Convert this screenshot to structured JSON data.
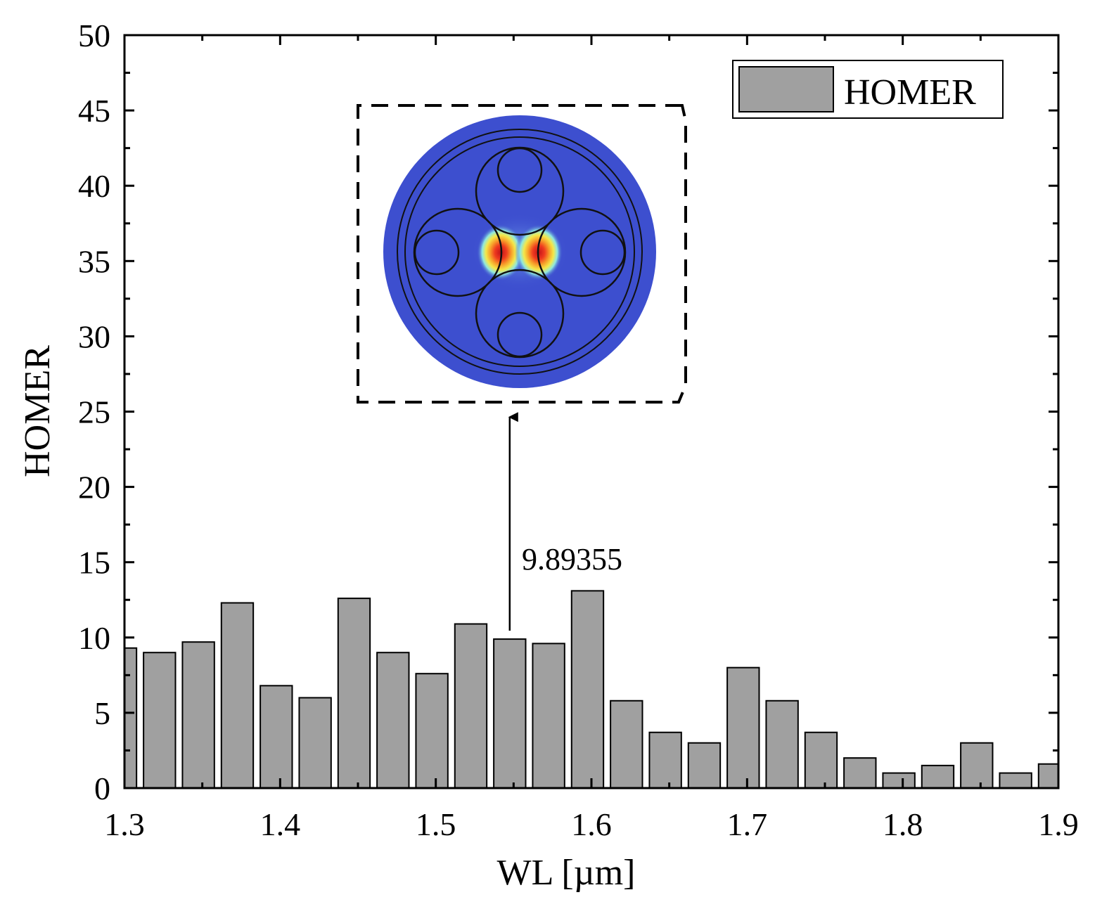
{
  "chart_data": {
    "type": "bar",
    "title": "",
    "xlabel": "WL [µm]",
    "ylabel": "HOMER",
    "xlim": [
      1.3,
      1.9
    ],
    "ylim": [
      0,
      50
    ],
    "x_ticks": [
      "1.3",
      "1.4",
      "1.5",
      "1.6",
      "1.7",
      "1.8",
      "1.9"
    ],
    "y_ticks": [
      "0",
      "5",
      "10",
      "15",
      "20",
      "25",
      "30",
      "35",
      "40",
      "45",
      "50"
    ],
    "bin_width": 0.025,
    "legend": {
      "position": "top-right",
      "entries": [
        "HOMER"
      ]
    },
    "series": [
      {
        "name": "HOMER",
        "color": "#a0a0a0",
        "x": [
          1.2975,
          1.3225,
          1.3475,
          1.3725,
          1.3975,
          1.4225,
          1.4475,
          1.4725,
          1.4975,
          1.5225,
          1.5475,
          1.5725,
          1.5975,
          1.6225,
          1.6475,
          1.6725,
          1.6975,
          1.7225,
          1.7475,
          1.7725,
          1.7975,
          1.8225,
          1.8475,
          1.8725,
          1.8975
        ],
        "values": [
          9.3,
          9.0,
          9.7,
          12.3,
          6.8,
          6.0,
          12.6,
          9.0,
          7.6,
          10.9,
          9.89355,
          9.6,
          13.1,
          5.8,
          3.7,
          3.0,
          8.0,
          5.8,
          3.7,
          2.0,
          1.0,
          1.5,
          3.0,
          1.0,
          1.6
        ]
      }
    ],
    "annotations": [
      {
        "text": "9.89355",
        "x": 1.5475,
        "y": 9.89355,
        "arrow_to_y": 25.2,
        "note": "arrow points to inset mode-field image"
      }
    ]
  },
  "colors": {
    "bar_fill": "#a0a0a0",
    "bar_edge": "#000000",
    "inset_background": "#3d4fcf",
    "inset_hot": "#e8211a"
  },
  "icons": {
    "inset": "fiber-mode-profile-icon"
  }
}
